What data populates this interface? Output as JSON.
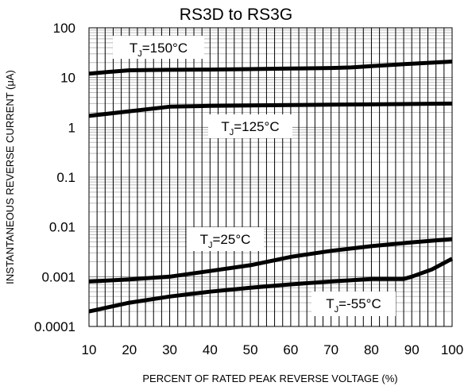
{
  "chart_data": {
    "type": "line",
    "title": "RS3D to RS3G",
    "xlabel": "PERCENT OF RATED PEAK REVERSE VOLTAGE (%)",
    "ylabel": "INSTANTANEOUS REVERSE CURRENT (μA)",
    "xlim": [
      10,
      100
    ],
    "ylim": [
      0.0001,
      100
    ],
    "yscale": "log",
    "grid": true,
    "legend": "inline labels",
    "x_ticks": [
      "10",
      "20",
      "30",
      "40",
      "50",
      "60",
      "70",
      "80",
      "90",
      "100"
    ],
    "y_ticks": [
      "100",
      "10",
      "1",
      "0.1",
      "0.01",
      "0.001",
      "0.0001"
    ],
    "series": [
      {
        "label": {
          "prefix": "T",
          "sub": "J",
          "suffix": "=150°C"
        },
        "x": [
          10,
          15,
          20,
          25,
          30,
          40,
          50,
          60,
          70,
          75,
          80,
          90,
          100
        ],
        "y": [
          12,
          13,
          14,
          14.2,
          14.3,
          14.5,
          14.8,
          15.2,
          15.6,
          16,
          17,
          19,
          21
        ]
      },
      {
        "label": {
          "prefix": "T",
          "sub": "J",
          "suffix": "=125°C"
        },
        "x": [
          10,
          20,
          30,
          40,
          50,
          60,
          70,
          80,
          90,
          100
        ],
        "y": [
          1.7,
          2.1,
          2.6,
          2.7,
          2.75,
          2.8,
          2.85,
          2.9,
          2.95,
          3.0
        ]
      },
      {
        "label": {
          "prefix": "T",
          "sub": "J",
          "suffix": "=25°C"
        },
        "x": [
          10,
          20,
          30,
          40,
          50,
          60,
          70,
          80,
          90,
          100
        ],
        "y": [
          0.0008,
          0.00088,
          0.001,
          0.0013,
          0.0017,
          0.0025,
          0.0033,
          0.0041,
          0.0049,
          0.0057
        ]
      },
      {
        "label": {
          "prefix": "T",
          "sub": "J",
          "suffix": "=-55°C"
        },
        "x": [
          10,
          20,
          30,
          40,
          50,
          60,
          70,
          80,
          88,
          90,
          95,
          100
        ],
        "y": [
          0.0002,
          0.0003,
          0.0004,
          0.0005,
          0.0006,
          0.0007,
          0.0008,
          0.0009,
          0.0009,
          0.001,
          0.0014,
          0.0023
        ]
      }
    ]
  }
}
